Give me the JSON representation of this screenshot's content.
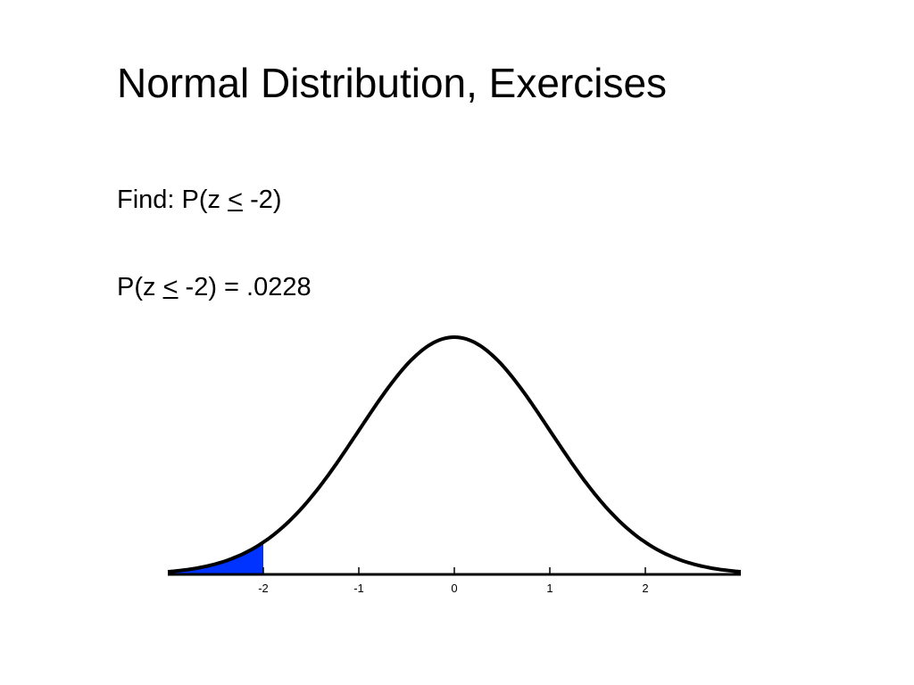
{
  "title": "Normal Distribution, Exercises",
  "lines": [
    {
      "segments": [
        "Find: P(z ",
        "<",
        " -2)"
      ]
    },
    {
      "segments": [
        "P(z ",
        "<",
        " -2) = .0228"
      ]
    }
  ],
  "figure": {
    "type": "normal-curve",
    "xlim": [
      -3,
      3
    ],
    "xticks": [
      -2,
      -1,
      0,
      1,
      2
    ],
    "shade_to": -2,
    "shade_color": "#0033ff"
  }
}
